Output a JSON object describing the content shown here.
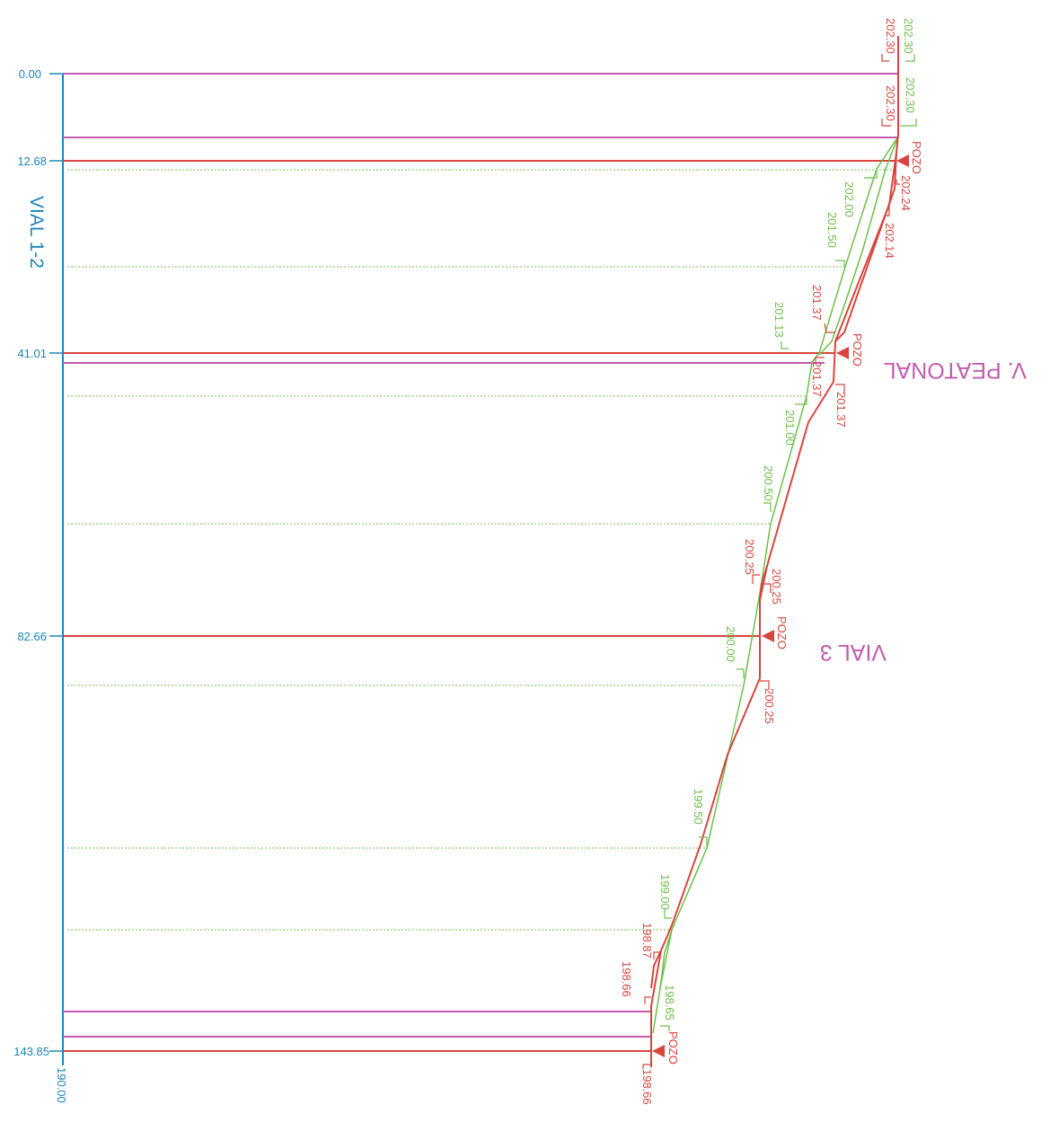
{
  "colors": {
    "axis": "#1a86b8",
    "terrain": "#6cc04a",
    "pipe": "#d9453e",
    "crossing": "#c45bb0"
  },
  "axis": {
    "title": "VIAL 1-2",
    "base_label": "190.00",
    "stations": [
      {
        "label": "0.00",
        "station": 0.0
      },
      {
        "label": "12.68",
        "station": 12.68
      },
      {
        "label": "41.01",
        "station": 41.01
      },
      {
        "label": "82.66",
        "station": 82.66
      },
      {
        "label": "143.85",
        "station": 143.85
      }
    ]
  },
  "street_labels": [
    {
      "id": "street-label-v-peatonal",
      "text": "V. PEATONAL"
    },
    {
      "id": "street-label-vial-3",
      "text": "VIAL 3"
    }
  ],
  "wells": [
    {
      "station": 12.68,
      "label": "POZO"
    },
    {
      "station": 41.01,
      "label": "POZO"
    },
    {
      "station": 82.66,
      "label": "POZO"
    },
    {
      "station": 143.85,
      "label": "POZO"
    }
  ],
  "terrain_labels": [
    "202.30",
    "202.30",
    "202.00",
    "201.50",
    "201.13",
    "201.00",
    "200.50",
    "200.00",
    "199.50",
    "199.00",
    "198.65"
  ],
  "pipe_labels": [
    "202.30",
    "202.30",
    "202.24",
    "202.14",
    "201.37",
    "201.37",
    "201.37",
    "200.25",
    "200.25",
    "200.25",
    "198.87",
    "198.66",
    "198.66"
  ]
}
